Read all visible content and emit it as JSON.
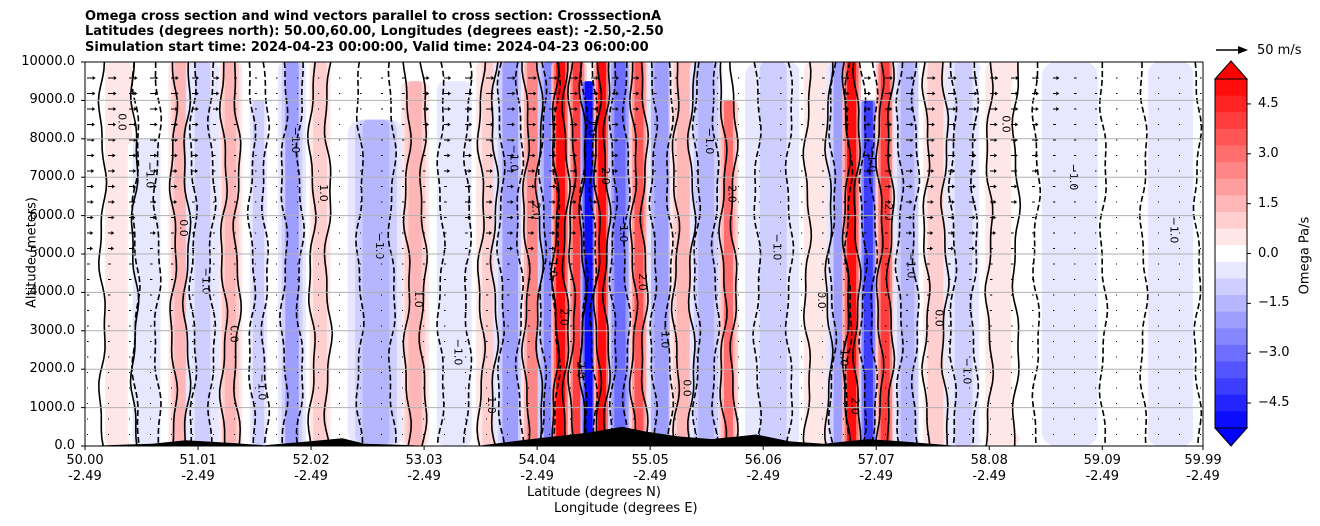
{
  "title_lines": [
    "Omega cross section and wind vectors parallel to cross section: CrosssectionA",
    "Latitudes (degrees north): 50.00,60.00, Longitudes (degrees east): -2.50,-2.50",
    "Simulation start time: 2024-04-23 00:00:00, Valid time: 2024-04-23 06:00:00"
  ],
  "chart_data": {
    "type": "heatmap",
    "ylabel": "Altitude (meters)",
    "xlabel_lines": [
      "Latitude (degrees N)",
      "Longitude (degrees E)"
    ],
    "ylim": [
      0,
      10000
    ],
    "y_ticks": [
      "0.0",
      "1000.0",
      "2000.0",
      "3000.0",
      "4000.0",
      "5000.0",
      "6000.0",
      "7000.0",
      "8000.0",
      "9000.0",
      "10000.0"
    ],
    "y_tick_values": [
      0,
      1000,
      2000,
      3000,
      4000,
      5000,
      6000,
      7000,
      8000,
      9000,
      10000
    ],
    "xlim": [
      50.0,
      59.99
    ],
    "x_ticks": [
      {
        "lat": "50.00",
        "lon": "-2.49",
        "value": 50.0
      },
      {
        "lat": "51.01",
        "lon": "-2.49",
        "value": 51.01
      },
      {
        "lat": "52.02",
        "lon": "-2.49",
        "value": 52.02
      },
      {
        "lat": "53.03",
        "lon": "-2.49",
        "value": 53.03
      },
      {
        "lat": "54.04",
        "lon": "-2.49",
        "value": 54.04
      },
      {
        "lat": "55.05",
        "lon": "-2.49",
        "value": 55.05
      },
      {
        "lat": "56.06",
        "lon": "-2.49",
        "value": 56.06
      },
      {
        "lat": "57.07",
        "lon": "-2.49",
        "value": 57.07
      },
      {
        "lat": "58.08",
        "lon": "-2.49",
        "value": 58.08
      },
      {
        "lat": "59.09",
        "lon": "-2.49",
        "value": 59.09
      },
      {
        "lat": "59.99",
        "lon": "-2.49",
        "value": 59.99
      }
    ],
    "grid": "horizontal",
    "colorbar": {
      "label": "Omega Pa/s",
      "range": [
        -5.25,
        5.25
      ],
      "ticks": [
        "4.5",
        "3.0",
        "1.5",
        "0.0",
        "−1.5",
        "−3.0",
        "−4.5"
      ],
      "tick_values": [
        4.5,
        3.0,
        1.5,
        0.0,
        -1.5,
        -3.0,
        -4.5
      ],
      "levels": 21,
      "extend": "both",
      "cmap": "bwr",
      "color_min": "#0000ff",
      "color_max": "#ff0000",
      "color_mid": "#ffffff"
    },
    "reference_vector": {
      "label": "50 m/s",
      "speed": 50
    },
    "omega_bands": [
      {
        "lat": 50.3,
        "omega": 0.4,
        "width": 0.12,
        "top": 10000
      },
      {
        "lat": 50.55,
        "omega": -0.6,
        "width": 0.08,
        "top": 8000
      },
      {
        "lat": 50.85,
        "omega": 1.6,
        "width": 0.05,
        "top": 10000
      },
      {
        "lat": 51.05,
        "omega": -1.2,
        "width": 0.07,
        "top": 10000
      },
      {
        "lat": 51.3,
        "omega": 1.4,
        "width": 0.05,
        "top": 10000
      },
      {
        "lat": 51.55,
        "omega": -0.8,
        "width": 0.05,
        "top": 9000
      },
      {
        "lat": 51.85,
        "omega": -2.0,
        "width": 0.06,
        "top": 10000
      },
      {
        "lat": 52.1,
        "omega": 0.8,
        "width": 0.06,
        "top": 10000
      },
      {
        "lat": 52.6,
        "omega": -1.4,
        "width": 0.12,
        "top": 8500
      },
      {
        "lat": 52.95,
        "omega": 1.6,
        "width": 0.06,
        "top": 9500
      },
      {
        "lat": 53.3,
        "omega": -0.7,
        "width": 0.1,
        "top": 9500
      },
      {
        "lat": 53.6,
        "omega": 1.2,
        "width": 0.05,
        "top": 10000
      },
      {
        "lat": 53.8,
        "omega": -1.8,
        "width": 0.07,
        "top": 10000
      },
      {
        "lat": 54.0,
        "omega": 2.4,
        "width": 0.05,
        "top": 10000
      },
      {
        "lat": 54.15,
        "omega": -2.6,
        "width": 0.05,
        "top": 10000
      },
      {
        "lat": 54.25,
        "omega": 4.8,
        "width": 0.04,
        "top": 10000
      },
      {
        "lat": 54.4,
        "omega": 4.0,
        "width": 0.04,
        "top": 10000
      },
      {
        "lat": 54.5,
        "omega": -5.2,
        "width": 0.035,
        "top": 9500
      },
      {
        "lat": 54.62,
        "omega": 5.2,
        "width": 0.035,
        "top": 10000
      },
      {
        "lat": 54.78,
        "omega": -3.0,
        "width": 0.05,
        "top": 10000
      },
      {
        "lat": 54.95,
        "omega": 3.6,
        "width": 0.04,
        "top": 10000
      },
      {
        "lat": 55.15,
        "omega": -2.2,
        "width": 0.06,
        "top": 10000
      },
      {
        "lat": 55.35,
        "omega": 1.4,
        "width": 0.06,
        "top": 10000
      },
      {
        "lat": 55.55,
        "omega": -1.4,
        "width": 0.07,
        "top": 10000
      },
      {
        "lat": 55.75,
        "omega": 2.8,
        "width": 0.04,
        "top": 9000
      },
      {
        "lat": 56.15,
        "omega": -0.9,
        "width": 0.12,
        "top": 10000
      },
      {
        "lat": 56.55,
        "omega": 0.6,
        "width": 0.08,
        "top": 10000
      },
      {
        "lat": 56.75,
        "omega": -1.8,
        "width": 0.06,
        "top": 10000
      },
      {
        "lat": 56.85,
        "omega": 5.0,
        "width": 0.04,
        "top": 10000
      },
      {
        "lat": 57.0,
        "omega": -4.0,
        "width": 0.04,
        "top": 9000
      },
      {
        "lat": 57.15,
        "omega": 4.0,
        "width": 0.04,
        "top": 10000
      },
      {
        "lat": 57.35,
        "omega": -1.6,
        "width": 0.06,
        "top": 10000
      },
      {
        "lat": 57.6,
        "omega": 0.8,
        "width": 0.07,
        "top": 10000
      },
      {
        "lat": 57.85,
        "omega": -1.0,
        "width": 0.08,
        "top": 10000
      },
      {
        "lat": 58.2,
        "omega": 0.7,
        "width": 0.1,
        "top": 10000
      },
      {
        "lat": 58.8,
        "omega": -0.4,
        "width": 0.25,
        "top": 10000
      },
      {
        "lat": 59.7,
        "omega": -0.3,
        "width": 0.2,
        "top": 10000
      }
    ],
    "contour_labels": [
      "0.0",
      "1.0",
      "−1.0",
      "2.0",
      "−2.0"
    ],
    "terrain": [
      {
        "lat": 50.0,
        "alt": 0
      },
      {
        "lat": 50.6,
        "alt": 60
      },
      {
        "lat": 50.9,
        "alt": 150
      },
      {
        "lat": 51.3,
        "alt": 80
      },
      {
        "lat": 51.6,
        "alt": 20
      },
      {
        "lat": 52.0,
        "alt": 120
      },
      {
        "lat": 52.3,
        "alt": 200
      },
      {
        "lat": 52.5,
        "alt": 60
      },
      {
        "lat": 52.8,
        "alt": 30
      },
      {
        "lat": 53.1,
        "alt": 0
      },
      {
        "lat": 53.5,
        "alt": 0
      },
      {
        "lat": 53.9,
        "alt": 150
      },
      {
        "lat": 54.2,
        "alt": 250
      },
      {
        "lat": 54.5,
        "alt": 350
      },
      {
        "lat": 54.8,
        "alt": 500
      },
      {
        "lat": 55.0,
        "alt": 380
      },
      {
        "lat": 55.3,
        "alt": 250
      },
      {
        "lat": 55.6,
        "alt": 180
      },
      {
        "lat": 56.0,
        "alt": 300
      },
      {
        "lat": 56.3,
        "alt": 120
      },
      {
        "lat": 56.6,
        "alt": 60
      },
      {
        "lat": 57.0,
        "alt": 180
      },
      {
        "lat": 57.3,
        "alt": 120
      },
      {
        "lat": 57.6,
        "alt": 50
      },
      {
        "lat": 57.8,
        "alt": 0
      },
      {
        "lat": 59.99,
        "alt": 0
      }
    ]
  }
}
